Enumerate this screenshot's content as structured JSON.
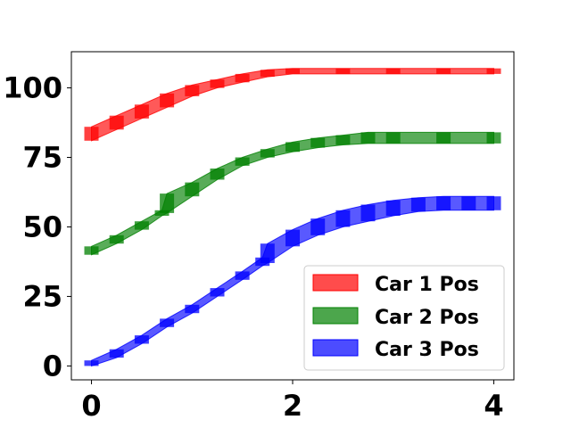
{
  "chart_data": {
    "type": "area",
    "title": "",
    "xlabel": "",
    "ylabel": "",
    "xlim": [
      -0.2,
      4.2
    ],
    "ylim": [
      -5,
      113
    ],
    "xticks": [
      0,
      2,
      4
    ],
    "yticks": [
      0,
      25,
      50,
      75,
      100
    ],
    "xtick_labels": [
      "0",
      "2",
      "4"
    ],
    "ytick_labels": [
      "0",
      "25",
      "50",
      "75",
      "100"
    ],
    "grid": false,
    "legend_position": "lower-right",
    "series": [
      {
        "name": "Car 1 Pos",
        "color": "#ff0000",
        "x": [
          0,
          0.25,
          0.5,
          0.75,
          1.0,
          1.25,
          1.5,
          1.75,
          2.0,
          2.5,
          3.0,
          3.5,
          4.0
        ],
        "lower": [
          81,
          85,
          89,
          93,
          97,
          100,
          102,
          104,
          105,
          105,
          105,
          105,
          105
        ],
        "upper": [
          86,
          90,
          94,
          98,
          101,
          103,
          105,
          106.5,
          107,
          107,
          107,
          107,
          107
        ]
      },
      {
        "name": "Car 2 Pos",
        "color": "#008000",
        "x": [
          0,
          0.25,
          0.5,
          0.7,
          0.75,
          1.0,
          1.25,
          1.5,
          1.75,
          2.0,
          2.25,
          2.5,
          2.75,
          3.0,
          3.5,
          4.0
        ],
        "lower": [
          40,
          44,
          49,
          54,
          55,
          61,
          67,
          72,
          75,
          77,
          78.5,
          79.5,
          80,
          80,
          80,
          80
        ],
        "upper": [
          43,
          47,
          52,
          56,
          62,
          66,
          71,
          75,
          78,
          80.5,
          82,
          83,
          84,
          84,
          84,
          84
        ]
      },
      {
        "name": "Car 3 Pos",
        "color": "#0000ff",
        "x": [
          0,
          0.25,
          0.5,
          0.75,
          1.0,
          1.25,
          1.5,
          1.7,
          1.75,
          2.0,
          2.25,
          2.5,
          2.75,
          3.0,
          3.25,
          3.5,
          3.75,
          4.0
        ],
        "lower": [
          0,
          3,
          8,
          14,
          19,
          25,
          31,
          36,
          37,
          43,
          47,
          50,
          52,
          54,
          55.5,
          56,
          56,
          56
        ],
        "upper": [
          2,
          6,
          11,
          17,
          22,
          28,
          34,
          39,
          44,
          49,
          53,
          56,
          58,
          59.5,
          60.5,
          61,
          61,
          61
        ]
      }
    ]
  }
}
